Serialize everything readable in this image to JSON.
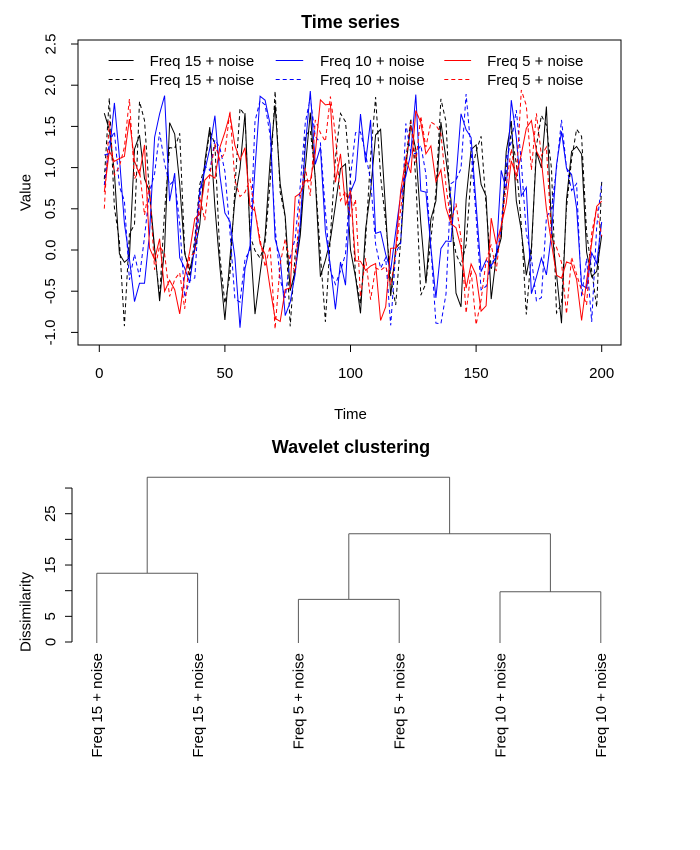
{
  "page": {
    "background": "#ffffff"
  },
  "chart_data": [
    {
      "type": "line",
      "title": "Time series",
      "xlabel": "Time",
      "ylabel": "Value",
      "xlim": [
        0,
        200
      ],
      "ylim": [
        -1.0,
        2.5
      ],
      "x_tick_labels": [
        "0",
        "50",
        "100",
        "150",
        "200"
      ],
      "y_tick_labels": [
        "-1.0",
        "-0.5",
        "0.0",
        "0.5",
        "1.0",
        "1.5",
        "2.0",
        "2.5"
      ],
      "grid": false,
      "frame_box": true,
      "legend_position": "top-inside",
      "legend_rows": 2,
      "legend_cols": 3,
      "n_points_per_series": 100,
      "t_step": 2,
      "noise_range": [
        0,
        1
      ],
      "model": "value = sin(2*pi*freq*t/200) + uniform_noise(0,1)",
      "series": [
        {
          "name": "Freq 15 + noise",
          "freq": 15,
          "color": "#000000",
          "line_style": "solid",
          "seed": 41
        },
        {
          "name": "Freq 15 + noise",
          "freq": 15,
          "color": "#000000",
          "line_style": "dashed",
          "seed": 173
        },
        {
          "name": "Freq 10 + noise",
          "freq": 10,
          "color": "#0000ff",
          "line_style": "solid",
          "seed": 97
        },
        {
          "name": "Freq 10 + noise",
          "freq": 10,
          "color": "#0000ff",
          "line_style": "dashed",
          "seed": 211
        },
        {
          "name": "Freq 5 + noise",
          "freq": 5,
          "color": "#ff0000",
          "line_style": "solid",
          "seed": 59
        },
        {
          "name": "Freq 5 + noise",
          "freq": 5,
          "color": "#ff0000",
          "line_style": "dashed",
          "seed": 131
        }
      ]
    },
    {
      "type": "dendrogram",
      "title": "Wavelet clustering",
      "ylabel": "Dissimilarity",
      "y_ticks": [
        0,
        5,
        10,
        15,
        20,
        25,
        30
      ],
      "y_tick_labels_shown": [
        "0",
        "5",
        "15",
        "25"
      ],
      "leaf_labels": [
        "Freq 15 + noise",
        "Freq 15 + noise",
        "Freq 5 + noise",
        "Freq 5 + noise",
        "Freq 10 + noise",
        "Freq 10 + noise"
      ],
      "merges": [
        {
          "id": "m1",
          "children": [
            "L0",
            "L1"
          ],
          "height": 13.4
        },
        {
          "id": "m2",
          "children": [
            "L2",
            "L3"
          ],
          "height": 8.3
        },
        {
          "id": "m3",
          "children": [
            "L4",
            "L5"
          ],
          "height": 9.8
        },
        {
          "id": "m4",
          "children": [
            "m2",
            "m3"
          ],
          "height": 21.1
        },
        {
          "id": "m5",
          "children": [
            "m1",
            "m4"
          ],
          "height": 32.1
        }
      ],
      "tree_color": "#595959",
      "axis_color": "#000000"
    }
  ]
}
